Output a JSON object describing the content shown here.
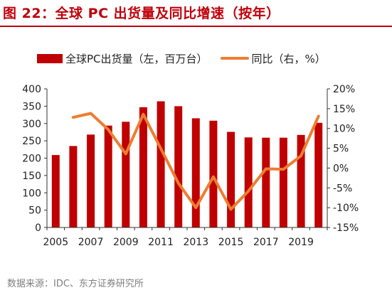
{
  "figure": {
    "title": "图 22：全球 PC 出货量及同比增速（按年）",
    "source": "数据来源：IDC、东方证券研究所"
  },
  "colors": {
    "bar": "#c00000",
    "line": "#ed7d31",
    "title": "#c0000b",
    "axis": "#222222"
  },
  "chart_data": {
    "type": "bar+line",
    "x": [
      2005,
      2006,
      2007,
      2008,
      2009,
      2010,
      2011,
      2012,
      2013,
      2014,
      2015,
      2016,
      2017,
      2018,
      2019,
      2020
    ],
    "x_tick_labels": [
      "2005",
      "2007",
      "2009",
      "2011",
      "2013",
      "2015",
      "2017",
      "2019"
    ],
    "series": [
      {
        "name": "全球PC出货量（左，百万台）",
        "kind": "bar",
        "axis": "left",
        "values": [
          209,
          235,
          268,
          294,
          305,
          347,
          364,
          350,
          315,
          308,
          276,
          260,
          259,
          259,
          267,
          302
        ]
      },
      {
        "name": "同比（右，%）",
        "kind": "line",
        "axis": "right",
        "values": [
          null,
          12.8,
          13.8,
          9.7,
          3.6,
          13.6,
          4.9,
          -3.8,
          -10.0,
          -2.2,
          -10.4,
          -5.8,
          -0.2,
          -0.3,
          3.1,
          13.1
        ]
      }
    ],
    "left_axis": {
      "ylim": [
        0,
        400
      ],
      "ticks": [
        "0",
        "50",
        "100",
        "150",
        "200",
        "250",
        "300",
        "350",
        "400"
      ]
    },
    "right_axis": {
      "ylim": [
        -15,
        20
      ],
      "ticks": [
        "-15%",
        "-10%",
        "-5%",
        "0%",
        "5%",
        "10%",
        "15%",
        "20%"
      ]
    },
    "grid": false,
    "legend_position": "top"
  }
}
